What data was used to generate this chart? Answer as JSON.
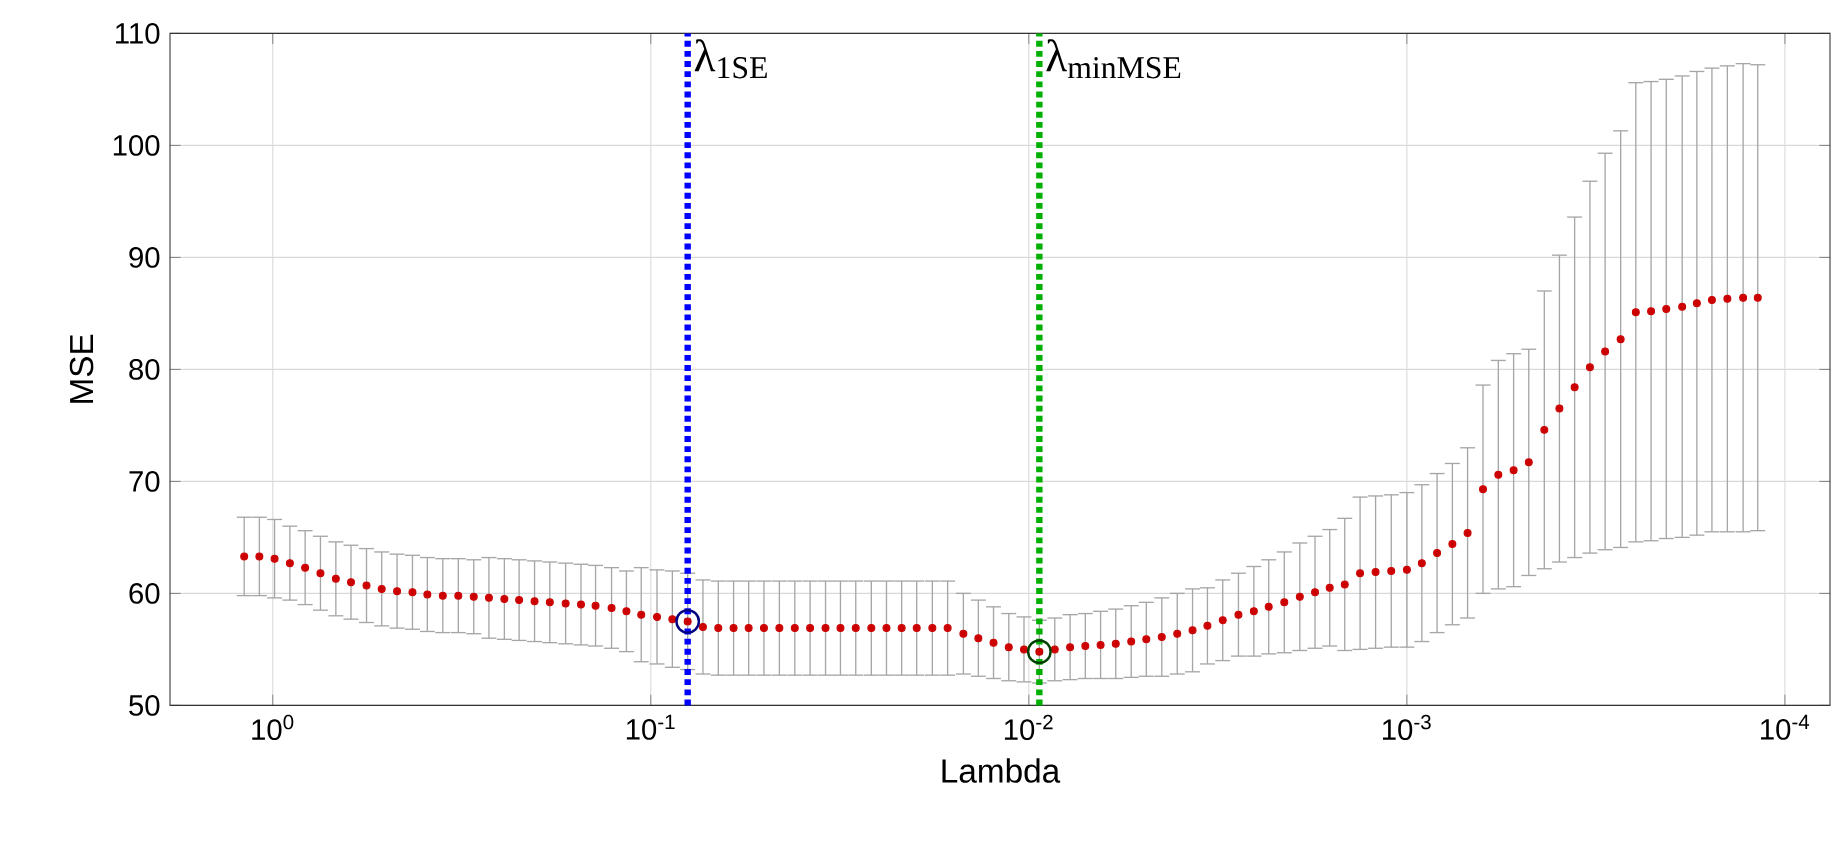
{
  "chart_data": {
    "type": "scatter",
    "xlabel": "Lambda",
    "ylabel": "MSE",
    "log": "x",
    "grid": true,
    "marker": "circle",
    "xlim": [
      1.87,
      7.6e-05
    ],
    "ylim": [
      50,
      110
    ],
    "xticks": [
      {
        "value": 1,
        "label": "10$^{0}$"
      },
      {
        "value": 0.1,
        "label": "10$^{-1}$"
      },
      {
        "value": 0.01,
        "label": "10$^{-2}$"
      },
      {
        "value": 0.001,
        "label": "10$^{-3}$"
      },
      {
        "value": 0.0001,
        "label": "10$^{-4}$"
      }
    ],
    "yticks": [
      50,
      60,
      70,
      80,
      90,
      100,
      110
    ],
    "ref_lines": [
      {
        "axis": "x",
        "value": 0.0799,
        "label": "λ$_{1SE}$",
        "color": "#0000ff",
        "line_style": "dotted"
      },
      {
        "axis": "x",
        "value": 0.00938,
        "label": "λ$_{minMSE}$",
        "color": "#00b000",
        "line_style": "dotted"
      }
    ],
    "series": [
      {
        "color": "#cc0000",
        "x": [
          1.19,
          1.085,
          0.989,
          0.901,
          0.821,
          0.748,
          0.681,
          0.621,
          0.565,
          0.515,
          0.469,
          0.427,
          0.39,
          0.355,
          0.323,
          0.294,
          0.268,
          0.244,
          0.223,
          0.203,
          0.185,
          0.168,
          0.153,
          0.14,
          0.127,
          0.116,
          0.106,
          0.0963,
          0.0877,
          0.0799,
          0.0728,
          0.0663,
          0.0604,
          0.0551,
          0.0502,
          0.0457,
          0.0416,
          0.0379,
          0.0345,
          0.0315,
          0.0287,
          0.0261,
          0.0238,
          0.0217,
          0.0198,
          0.018,
          0.0164,
          0.0149,
          0.0136,
          0.0124,
          0.0113,
          0.0103,
          0.00938,
          0.00854,
          0.00778,
          0.00709,
          0.00646,
          0.00589,
          0.00536,
          0.00489,
          0.00445,
          0.00405,
          0.00369,
          0.00337,
          0.00307,
          0.00279,
          0.00254,
          0.00232,
          0.00211,
          0.00192,
          0.00175,
          0.0016,
          0.00146,
          0.00133,
          0.00121,
          0.0011,
          0.001,
          0.000913,
          0.000832,
          0.000758,
          0.000691,
          0.000629,
          0.000573,
          0.000522,
          0.000476,
          0.000433,
          0.000395,
          0.00036,
          0.000328,
          0.000299,
          0.000272,
          0.000248,
          0.000226,
          0.000206,
          0.000187,
          0.000171,
          0.000156,
          0.000142,
          0.000129,
          0.000118
        ],
        "values": [
          63.3,
          63.3,
          63.1,
          62.7,
          62.3,
          61.8,
          61.3,
          61.0,
          60.7,
          60.4,
          60.2,
          60.1,
          59.9,
          59.8,
          59.8,
          59.7,
          59.6,
          59.5,
          59.4,
          59.3,
          59.2,
          59.1,
          59.0,
          58.9,
          58.7,
          58.4,
          58.1,
          57.9,
          57.7,
          57.5,
          57.0,
          56.9,
          56.9,
          56.9,
          56.9,
          56.9,
          56.9,
          56.9,
          56.9,
          56.9,
          56.9,
          56.9,
          56.9,
          56.9,
          56.9,
          56.9,
          56.9,
          56.4,
          56.0,
          55.6,
          55.2,
          55.0,
          54.8,
          55.0,
          55.2,
          55.3,
          55.4,
          55.5,
          55.7,
          55.9,
          56.1,
          56.4,
          56.7,
          57.1,
          57.6,
          58.1,
          58.4,
          58.8,
          59.2,
          59.7,
          60.1,
          60.5,
          60.8,
          61.8,
          61.9,
          62.0,
          62.1,
          62.7,
          63.6,
          64.4,
          65.4,
          69.3,
          70.6,
          71.0,
          71.7,
          74.6,
          76.5,
          78.4,
          80.2,
          81.6,
          82.7,
          85.1,
          85.2,
          85.4,
          85.6,
          85.9,
          86.2,
          86.3,
          86.4,
          86.4
        ],
        "errors": [
          3.5,
          3.5,
          3.5,
          3.3,
          3.3,
          3.3,
          3.3,
          3.3,
          3.3,
          3.3,
          3.3,
          3.3,
          3.3,
          3.3,
          3.3,
          3.3,
          3.6,
          3.6,
          3.6,
          3.6,
          3.6,
          3.6,
          3.6,
          3.6,
          3.6,
          3.6,
          4.2,
          4.2,
          4.3,
          4.3,
          4.2,
          4.2,
          4.2,
          4.2,
          4.2,
          4.2,
          4.2,
          4.2,
          4.2,
          4.2,
          4.2,
          4.2,
          4.2,
          4.2,
          4.2,
          4.2,
          4.2,
          3.6,
          3.4,
          3.2,
          3.0,
          2.9,
          2.8,
          2.8,
          2.9,
          2.9,
          3.0,
          3.1,
          3.2,
          3.3,
          3.5,
          3.6,
          3.7,
          3.4,
          3.6,
          3.7,
          4.0,
          4.2,
          4.5,
          4.8,
          5.0,
          5.2,
          5.9,
          6.8,
          6.8,
          6.8,
          6.9,
          7.0,
          7.1,
          7.2,
          7.6,
          9.3,
          10.2,
          10.4,
          10.1,
          12.4,
          13.7,
          15.2,
          16.6,
          17.7,
          18.6,
          20.5,
          20.5,
          20.5,
          20.6,
          20.7,
          20.7,
          20.8,
          20.9,
          20.8
        ]
      },
      {
        "color": "#000080",
        "x": [
          0.0799
        ],
        "values": [
          57.5
        ]
      },
      {
        "color": "#004000",
        "x": [
          0.00938
        ],
        "values": [
          54.8
        ]
      }
    ]
  }
}
